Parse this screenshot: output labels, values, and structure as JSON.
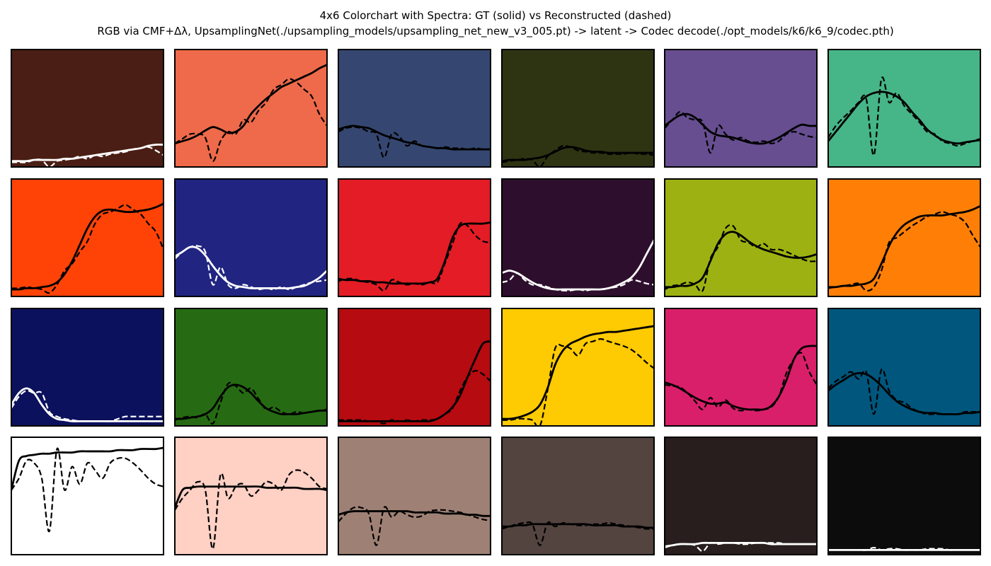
{
  "title_line1": "4x6 Colorchart with Spectra: GT (solid) vs Reconstructed (dashed)",
  "title_line2": "RGB via CMF+Δλ, UpsamplingNet(./upsampling_models/upsampling_net_new_v3_005.pt) -> latent -> Codec decode(./opt_models/k6/k6_9/codec.pth)",
  "chart_data": {
    "type": "line",
    "layout": "4x6 grid of small multiples",
    "axes_visible": false,
    "grid": false,
    "ylim": [
      0,
      1
    ],
    "series_styles": {
      "gt": "solid",
      "recon": "dashed"
    },
    "x": [
      0.0,
      0.05,
      0.1,
      0.15,
      0.2,
      0.25,
      0.3,
      0.35,
      0.4,
      0.45,
      0.5,
      0.55,
      0.6,
      0.65,
      0.7,
      0.75,
      0.8,
      0.85,
      0.9,
      0.95,
      1.0
    ],
    "patches": [
      {
        "color": "#4A1E14",
        "line": "#ffffff",
        "gt": [
          0.05,
          0.05,
          0.05,
          0.06,
          0.06,
          0.06,
          0.06,
          0.07,
          0.07,
          0.08,
          0.09,
          0.1,
          0.11,
          0.12,
          0.13,
          0.14,
          0.15,
          0.16,
          0.18,
          0.19,
          0.19
        ],
        "recon": [
          0.04,
          0.04,
          0.04,
          0.06,
          0.06,
          0.0,
          0.05,
          0.06,
          0.07,
          0.09,
          0.07,
          0.1,
          0.09,
          0.11,
          0.12,
          0.13,
          0.15,
          0.16,
          0.17,
          0.14,
          0.1
        ]
      },
      {
        "color": "#EE6A4A",
        "line": "#000000",
        "gt": [
          0.2,
          0.22,
          0.24,
          0.27,
          0.31,
          0.34,
          0.32,
          0.29,
          0.3,
          0.35,
          0.45,
          0.52,
          0.58,
          0.63,
          0.68,
          0.71,
          0.74,
          0.77,
          0.8,
          0.84,
          0.87
        ],
        "recon": [
          0.2,
          0.24,
          0.28,
          0.28,
          0.25,
          0.05,
          0.22,
          0.3,
          0.28,
          0.4,
          0.38,
          0.48,
          0.55,
          0.66,
          0.7,
          0.75,
          0.72,
          0.66,
          0.6,
          0.45,
          0.35
        ]
      },
      {
        "color": "#354770",
        "line": "#000000",
        "gt": [
          0.32,
          0.34,
          0.35,
          0.34,
          0.33,
          0.3,
          0.27,
          0.25,
          0.23,
          0.21,
          0.2,
          0.18,
          0.17,
          0.16,
          0.16,
          0.15,
          0.15,
          0.15,
          0.15,
          0.15,
          0.15
        ],
        "recon": [
          0.3,
          0.33,
          0.34,
          0.33,
          0.3,
          0.28,
          0.08,
          0.28,
          0.26,
          0.18,
          0.22,
          0.18,
          0.17,
          0.16,
          0.17,
          0.16,
          0.16,
          0.15,
          0.16,
          0.15,
          0.15
        ]
      },
      {
        "color": "#2E3412",
        "line": "#000000",
        "gt": [
          0.05,
          0.06,
          0.06,
          0.06,
          0.07,
          0.08,
          0.1,
          0.13,
          0.16,
          0.17,
          0.16,
          0.14,
          0.13,
          0.13,
          0.12,
          0.12,
          0.12,
          0.12,
          0.12,
          0.12,
          0.12
        ],
        "recon": [
          0.04,
          0.05,
          0.06,
          0.07,
          0.06,
          0.0,
          0.09,
          0.14,
          0.18,
          0.17,
          0.14,
          0.13,
          0.12,
          0.12,
          0.11,
          0.11,
          0.11,
          0.12,
          0.11,
          0.11,
          0.1
        ]
      },
      {
        "color": "#674E90",
        "line": "#000000",
        "gt": [
          0.35,
          0.4,
          0.44,
          0.45,
          0.42,
          0.36,
          0.3,
          0.27,
          0.26,
          0.25,
          0.23,
          0.21,
          0.2,
          0.2,
          0.22,
          0.25,
          0.29,
          0.33,
          0.36,
          0.35,
          0.35
        ],
        "recon": [
          0.33,
          0.4,
          0.47,
          0.42,
          0.4,
          0.38,
          0.12,
          0.35,
          0.28,
          0.23,
          0.25,
          0.22,
          0.21,
          0.22,
          0.2,
          0.22,
          0.28,
          0.3,
          0.28,
          0.26,
          0.25
        ]
      },
      {
        "color": "#46B587",
        "line": "#000000",
        "gt": [
          0.22,
          0.3,
          0.38,
          0.46,
          0.54,
          0.6,
          0.63,
          0.64,
          0.63,
          0.6,
          0.55,
          0.47,
          0.4,
          0.32,
          0.27,
          0.23,
          0.21,
          0.2,
          0.21,
          0.22,
          0.23
        ],
        "recon": [
          0.25,
          0.35,
          0.42,
          0.48,
          0.55,
          0.58,
          0.1,
          0.75,
          0.55,
          0.63,
          0.52,
          0.45,
          0.38,
          0.3,
          0.28,
          0.22,
          0.2,
          0.18,
          0.2,
          0.22,
          0.24
        ]
      },
      {
        "color": "#FF4307",
        "line": "#000000",
        "gt": [
          0.06,
          0.06,
          0.07,
          0.07,
          0.08,
          0.09,
          0.12,
          0.19,
          0.3,
          0.44,
          0.58,
          0.68,
          0.73,
          0.74,
          0.73,
          0.72,
          0.72,
          0.73,
          0.74,
          0.76,
          0.79
        ],
        "recon": [
          0.07,
          0.07,
          0.08,
          0.07,
          0.06,
          0.03,
          0.1,
          0.22,
          0.28,
          0.38,
          0.47,
          0.62,
          0.7,
          0.72,
          0.75,
          0.78,
          0.74,
          0.7,
          0.62,
          0.55,
          0.4
        ]
      },
      {
        "color": "#212581",
        "line": "#ffffff",
        "gt": [
          0.34,
          0.38,
          0.42,
          0.41,
          0.35,
          0.26,
          0.18,
          0.12,
          0.09,
          0.08,
          0.07,
          0.07,
          0.07,
          0.07,
          0.07,
          0.07,
          0.08,
          0.09,
          0.12,
          0.16,
          0.22
        ],
        "recon": [
          0.32,
          0.38,
          0.42,
          0.43,
          0.38,
          0.1,
          0.25,
          0.1,
          0.07,
          0.1,
          0.08,
          0.06,
          0.07,
          0.06,
          0.08,
          0.06,
          0.08,
          0.1,
          0.12,
          0.13,
          0.14
        ]
      },
      {
        "color": "#E41C25",
        "line": "#000000",
        "gt": [
          0.15,
          0.14,
          0.14,
          0.13,
          0.13,
          0.12,
          0.12,
          0.11,
          0.11,
          0.11,
          0.11,
          0.11,
          0.12,
          0.15,
          0.3,
          0.5,
          0.6,
          0.62,
          0.62,
          0.62,
          0.63
        ],
        "recon": [
          0.13,
          0.15,
          0.15,
          0.13,
          0.12,
          0.1,
          0.05,
          0.14,
          0.12,
          0.1,
          0.11,
          0.1,
          0.12,
          0.12,
          0.28,
          0.45,
          0.62,
          0.6,
          0.52,
          0.47,
          0.46
        ]
      },
      {
        "color": "#2E0E2D",
        "line": "#ffffff",
        "gt": [
          0.2,
          0.22,
          0.2,
          0.16,
          0.12,
          0.09,
          0.07,
          0.06,
          0.06,
          0.06,
          0.06,
          0.06,
          0.06,
          0.06,
          0.07,
          0.09,
          0.12,
          0.16,
          0.24,
          0.36,
          0.48
        ],
        "recon": [
          0.12,
          0.14,
          0.2,
          0.14,
          0.1,
          0.1,
          0.08,
          0.06,
          0.05,
          0.05,
          0.06,
          0.05,
          0.06,
          0.06,
          0.07,
          0.08,
          0.1,
          0.14,
          0.13,
          0.11,
          0.1
        ]
      },
      {
        "color": "#9DB212",
        "line": "#000000",
        "gt": [
          0.08,
          0.08,
          0.09,
          0.09,
          0.11,
          0.16,
          0.3,
          0.45,
          0.53,
          0.55,
          0.52,
          0.47,
          0.43,
          0.4,
          0.38,
          0.36,
          0.34,
          0.33,
          0.33,
          0.34,
          0.36
        ],
        "recon": [
          0.06,
          0.09,
          0.1,
          0.12,
          0.1,
          0.05,
          0.32,
          0.42,
          0.58,
          0.6,
          0.48,
          0.46,
          0.42,
          0.45,
          0.4,
          0.4,
          0.38,
          0.35,
          0.32,
          0.3,
          0.3
        ]
      },
      {
        "color": "#FF7F06",
        "line": "#000000",
        "gt": [
          0.08,
          0.08,
          0.09,
          0.09,
          0.1,
          0.11,
          0.15,
          0.28,
          0.43,
          0.54,
          0.61,
          0.65,
          0.68,
          0.69,
          0.69,
          0.69,
          0.7,
          0.71,
          0.72,
          0.74,
          0.77
        ],
        "recon": [
          0.07,
          0.08,
          0.09,
          0.1,
          0.11,
          0.05,
          0.08,
          0.22,
          0.46,
          0.5,
          0.55,
          0.6,
          0.64,
          0.68,
          0.7,
          0.72,
          0.7,
          0.68,
          0.63,
          0.52,
          0.42
        ]
      },
      {
        "color": "#0C115D",
        "line": "#ffffff",
        "gt": [
          0.18,
          0.28,
          0.32,
          0.28,
          0.18,
          0.1,
          0.06,
          0.05,
          0.04,
          0.04,
          0.04,
          0.04,
          0.04,
          0.04,
          0.04,
          0.04,
          0.04,
          0.04,
          0.04,
          0.04,
          0.04
        ],
        "recon": [
          0.15,
          0.25,
          0.3,
          0.28,
          0.28,
          0.12,
          0.08,
          0.06,
          0.05,
          0.04,
          0.04,
          0.04,
          0.04,
          0.04,
          0.06,
          0.08,
          0.08,
          0.08,
          0.08,
          0.08,
          0.08
        ]
      },
      {
        "color": "#266B13",
        "line": "#000000",
        "gt": [
          0.06,
          0.06,
          0.07,
          0.08,
          0.1,
          0.15,
          0.25,
          0.33,
          0.35,
          0.33,
          0.28,
          0.21,
          0.15,
          0.12,
          0.1,
          0.1,
          0.1,
          0.11,
          0.12,
          0.13,
          0.13
        ],
        "recon": [
          0.05,
          0.07,
          0.08,
          0.07,
          0.1,
          0.02,
          0.2,
          0.36,
          0.34,
          0.28,
          0.32,
          0.23,
          0.14,
          0.16,
          0.12,
          0.1,
          0.12,
          0.11,
          0.12,
          0.13,
          0.14
        ]
      },
      {
        "color": "#B60B10",
        "line": "#000000",
        "gt": [
          0.04,
          0.04,
          0.04,
          0.04,
          0.04,
          0.04,
          0.04,
          0.04,
          0.04,
          0.04,
          0.04,
          0.04,
          0.04,
          0.06,
          0.1,
          0.16,
          0.26,
          0.42,
          0.57,
          0.7,
          0.72
        ],
        "recon": [
          0.05,
          0.05,
          0.05,
          0.05,
          0.04,
          0.04,
          0.02,
          0.05,
          0.04,
          0.05,
          0.04,
          0.05,
          0.05,
          0.06,
          0.1,
          0.15,
          0.3,
          0.42,
          0.47,
          0.44,
          0.38
        ]
      },
      {
        "color": "#FECA02",
        "line": "#000000",
        "gt": [
          0.06,
          0.06,
          0.07,
          0.09,
          0.12,
          0.18,
          0.32,
          0.52,
          0.64,
          0.7,
          0.73,
          0.76,
          0.78,
          0.79,
          0.8,
          0.8,
          0.81,
          0.82,
          0.83,
          0.84,
          0.85
        ],
        "recon": [
          0.05,
          0.05,
          0.06,
          0.06,
          0.05,
          0.0,
          0.3,
          0.66,
          0.68,
          0.66,
          0.6,
          0.7,
          0.72,
          0.74,
          0.72,
          0.7,
          0.68,
          0.65,
          0.6,
          0.54,
          0.49
        ]
      },
      {
        "color": "#DA1F6A",
        "line": "#000000",
        "gt": [
          0.37,
          0.35,
          0.32,
          0.28,
          0.24,
          0.21,
          0.19,
          0.19,
          0.2,
          0.17,
          0.15,
          0.14,
          0.14,
          0.14,
          0.17,
          0.25,
          0.39,
          0.57,
          0.66,
          0.68,
          0.68
        ],
        "recon": [
          0.35,
          0.34,
          0.33,
          0.28,
          0.21,
          0.14,
          0.24,
          0.16,
          0.22,
          0.15,
          0.13,
          0.14,
          0.13,
          0.14,
          0.16,
          0.25,
          0.45,
          0.57,
          0.62,
          0.46,
          0.35
        ]
      },
      {
        "color": "#01567D",
        "line": "#000000",
        "gt": [
          0.3,
          0.35,
          0.39,
          0.43,
          0.45,
          0.44,
          0.4,
          0.34,
          0.27,
          0.21,
          0.17,
          0.14,
          0.12,
          0.11,
          0.11,
          0.1,
          0.1,
          0.1,
          0.11,
          0.11,
          0.12
        ],
        "recon": [
          0.32,
          0.38,
          0.42,
          0.46,
          0.4,
          0.46,
          0.1,
          0.48,
          0.3,
          0.22,
          0.2,
          0.15,
          0.12,
          0.1,
          0.1,
          0.1,
          0.1,
          0.1,
          0.12,
          0.12,
          0.12
        ]
      },
      {
        "color": "#FFFFFF",
        "line": "#000000",
        "gt": [
          0.55,
          0.8,
          0.84,
          0.85,
          0.86,
          0.86,
          0.87,
          0.87,
          0.87,
          0.88,
          0.88,
          0.88,
          0.88,
          0.88,
          0.89,
          0.89,
          0.89,
          0.9,
          0.9,
          0.9,
          0.91
        ],
        "recon": [
          0.55,
          0.65,
          0.8,
          0.78,
          0.65,
          0.2,
          0.9,
          0.55,
          0.75,
          0.6,
          0.78,
          0.72,
          0.65,
          0.78,
          0.82,
          0.82,
          0.78,
          0.72,
          0.65,
          0.6,
          0.58
        ]
      },
      {
        "color": "#FFD0C4",
        "line": "#000000",
        "gt": [
          0.4,
          0.55,
          0.57,
          0.58,
          0.58,
          0.58,
          0.58,
          0.58,
          0.58,
          0.58,
          0.58,
          0.58,
          0.57,
          0.57,
          0.57,
          0.57,
          0.57,
          0.56,
          0.56,
          0.56,
          0.55
        ],
        "recon": [
          0.38,
          0.48,
          0.55,
          0.62,
          0.55,
          0.05,
          0.68,
          0.48,
          0.58,
          0.6,
          0.5,
          0.55,
          0.62,
          0.6,
          0.55,
          0.68,
          0.72,
          0.7,
          0.65,
          0.58,
          0.56
        ]
      },
      {
        "color": "#9E8075",
        "line": "#000000",
        "gt": [
          0.34,
          0.36,
          0.37,
          0.37,
          0.37,
          0.37,
          0.37,
          0.37,
          0.37,
          0.37,
          0.36,
          0.36,
          0.36,
          0.36,
          0.35,
          0.35,
          0.35,
          0.34,
          0.34,
          0.33,
          0.33
        ],
        "recon": [
          0.28,
          0.35,
          0.4,
          0.4,
          0.35,
          0.08,
          0.4,
          0.32,
          0.37,
          0.34,
          0.32,
          0.33,
          0.37,
          0.38,
          0.38,
          0.37,
          0.36,
          0.34,
          0.32,
          0.3,
          0.29
        ]
      },
      {
        "color": "#534440",
        "line": "#000000",
        "gt": [
          0.24,
          0.24,
          0.25,
          0.25,
          0.26,
          0.26,
          0.26,
          0.26,
          0.26,
          0.26,
          0.26,
          0.26,
          0.25,
          0.25,
          0.25,
          0.25,
          0.24,
          0.24,
          0.24,
          0.23,
          0.23
        ],
        "recon": [
          0.22,
          0.24,
          0.26,
          0.27,
          0.26,
          0.08,
          0.27,
          0.24,
          0.27,
          0.26,
          0.25,
          0.25,
          0.26,
          0.26,
          0.27,
          0.26,
          0.25,
          0.24,
          0.23,
          0.22,
          0.22
        ]
      },
      {
        "color": "#271E1D",
        "line": "#ffffff",
        "gt": [
          0.07,
          0.08,
          0.09,
          0.09,
          0.09,
          0.1,
          0.1,
          0.1,
          0.1,
          0.1,
          0.1,
          0.1,
          0.1,
          0.1,
          0.09,
          0.09,
          0.09,
          0.09,
          0.09,
          0.09,
          0.09
        ],
        "recon": [
          0.06,
          0.08,
          0.09,
          0.09,
          0.08,
          0.03,
          0.1,
          0.09,
          0.1,
          0.1,
          0.09,
          0.09,
          0.1,
          0.1,
          0.1,
          0.1,
          0.09,
          0.09,
          0.09,
          0.09,
          0.09
        ]
      },
      {
        "color": "#0C0C0C",
        "line": "#ffffff",
        "gt": [
          0.04,
          0.04,
          0.04,
          0.04,
          0.04,
          0.04,
          0.04,
          0.04,
          0.04,
          0.04,
          0.04,
          0.04,
          0.04,
          0.04,
          0.04,
          0.04,
          0.04,
          0.04,
          0.04,
          0.04,
          0.04
        ],
        "recon": [
          0.04,
          0.04,
          0.04,
          0.04,
          0.04,
          0.04,
          0.06,
          0.04,
          0.05,
          0.05,
          0.04,
          0.04,
          0.04,
          0.05,
          0.05,
          0.05,
          0.04,
          0.04,
          0.04,
          0.04,
          0.04
        ]
      }
    ]
  }
}
